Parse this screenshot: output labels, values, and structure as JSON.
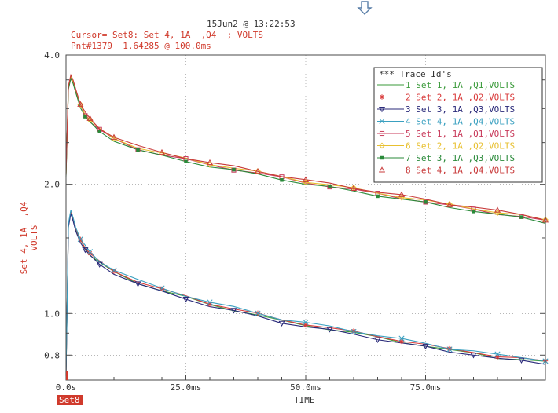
{
  "header": {
    "timestamp": "15Jun2 @ 13:22:53",
    "cursor_line": "Cursor= Set8: Set 4, 1A  ,Q4  ; VOLTS",
    "point_line": "Pnt#1379  1.64285 @ 100.0ms",
    "cursor_tab": "Set8"
  },
  "colors": {
    "header_red": "#d03a2c",
    "axis": "#4a4a4a",
    "grid": "#8c8c8c",
    "arrow": "#5a7fa8"
  },
  "icons": {
    "top_marker": "down-arrow-icon"
  },
  "chart_data": {
    "type": "line",
    "xlabel": "TIME",
    "ylabel": "Set 4, 1A  ,Q4\nVOLTS",
    "y_scale": "log",
    "xlim": [
      0,
      100
    ],
    "ylim": [
      0.7,
      4.0
    ],
    "x_ticks": [
      0,
      25,
      50,
      75
    ],
    "x_tick_labels": [
      "0.0s",
      "25.0ms",
      "50.0ms",
      "75.0ms"
    ],
    "y_ticks": [
      0.8,
      1.0,
      2.0,
      4.0
    ],
    "y_tick_labels": [
      "0.8",
      "1.0",
      "2.0",
      "4.0"
    ],
    "grid": true,
    "legend": {
      "title": "*** Trace Id's",
      "placement": "top-right",
      "entries": [
        {
          "id": "1",
          "label": "1 Set 1, 1A  ,Q1,VOLTS",
          "color": "#3a9a3a",
          "marker": "none"
        },
        {
          "id": "2",
          "label": "2 Set 2, 1A  ,Q2,VOLTS",
          "color": "#d93a3a",
          "marker": "asterisk"
        },
        {
          "id": "3",
          "label": "3 Set 3, 1A  ,Q3,VOLTS",
          "color": "#2a2a7a",
          "marker": "triangle-down"
        },
        {
          "id": "4",
          "label": "4 Set 4, 1A  ,Q4,VOLTS",
          "color": "#3aa0c0",
          "marker": "x"
        },
        {
          "id": "5",
          "label": "5 Set 1, 1A  ,Q1,VOLTS",
          "color": "#c83a5a",
          "marker": "square"
        },
        {
          "id": "6",
          "label": "6 Set 2, 1A  ,Q2,VOLTS",
          "color": "#e8c030",
          "marker": "diamond"
        },
        {
          "id": "7",
          "label": "7 Set 3, 1A  ,Q3,VOLTS",
          "color": "#2a8a3a",
          "marker": "filled-square"
        },
        {
          "id": "8",
          "label": "8 Set 4, 1A  ,Q4,VOLTS",
          "color": "#c83a3a",
          "marker": "triangle-up"
        }
      ]
    },
    "groups": [
      {
        "name": "",
        "x": [
          0,
          0.5,
          1,
          1.5,
          2,
          3,
          4,
          5,
          7,
          10,
          15,
          20,
          25,
          30,
          35,
          40,
          45,
          50,
          55,
          60,
          65,
          70,
          75,
          80,
          85,
          90,
          95,
          100
        ],
        "values": [
          2.1,
          3.35,
          3.55,
          3.45,
          3.3,
          3.05,
          2.9,
          2.8,
          2.67,
          2.55,
          2.42,
          2.34,
          2.28,
          2.22,
          2.17,
          2.12,
          2.07,
          2.02,
          1.98,
          1.94,
          1.9,
          1.86,
          1.82,
          1.78,
          1.75,
          1.71,
          1.68,
          1.64
        ],
        "series_ids": [
          "5",
          "6",
          "7",
          "8"
        ]
      },
      {
        "name": "",
        "x": [
          0,
          0.5,
          1,
          1.5,
          2,
          3,
          4,
          5,
          7,
          10,
          15,
          20,
          25,
          30,
          35,
          40,
          45,
          50,
          55,
          60,
          65,
          70,
          75,
          80,
          85,
          90,
          95,
          100
        ],
        "values": [
          0.72,
          1.6,
          1.72,
          1.65,
          1.57,
          1.48,
          1.42,
          1.37,
          1.31,
          1.25,
          1.18,
          1.13,
          1.09,
          1.05,
          1.02,
          0.99,
          0.96,
          0.94,
          0.92,
          0.9,
          0.88,
          0.86,
          0.84,
          0.82,
          0.81,
          0.79,
          0.78,
          0.77
        ],
        "series_ids": [
          "1",
          "2",
          "3",
          "4"
        ]
      }
    ]
  }
}
